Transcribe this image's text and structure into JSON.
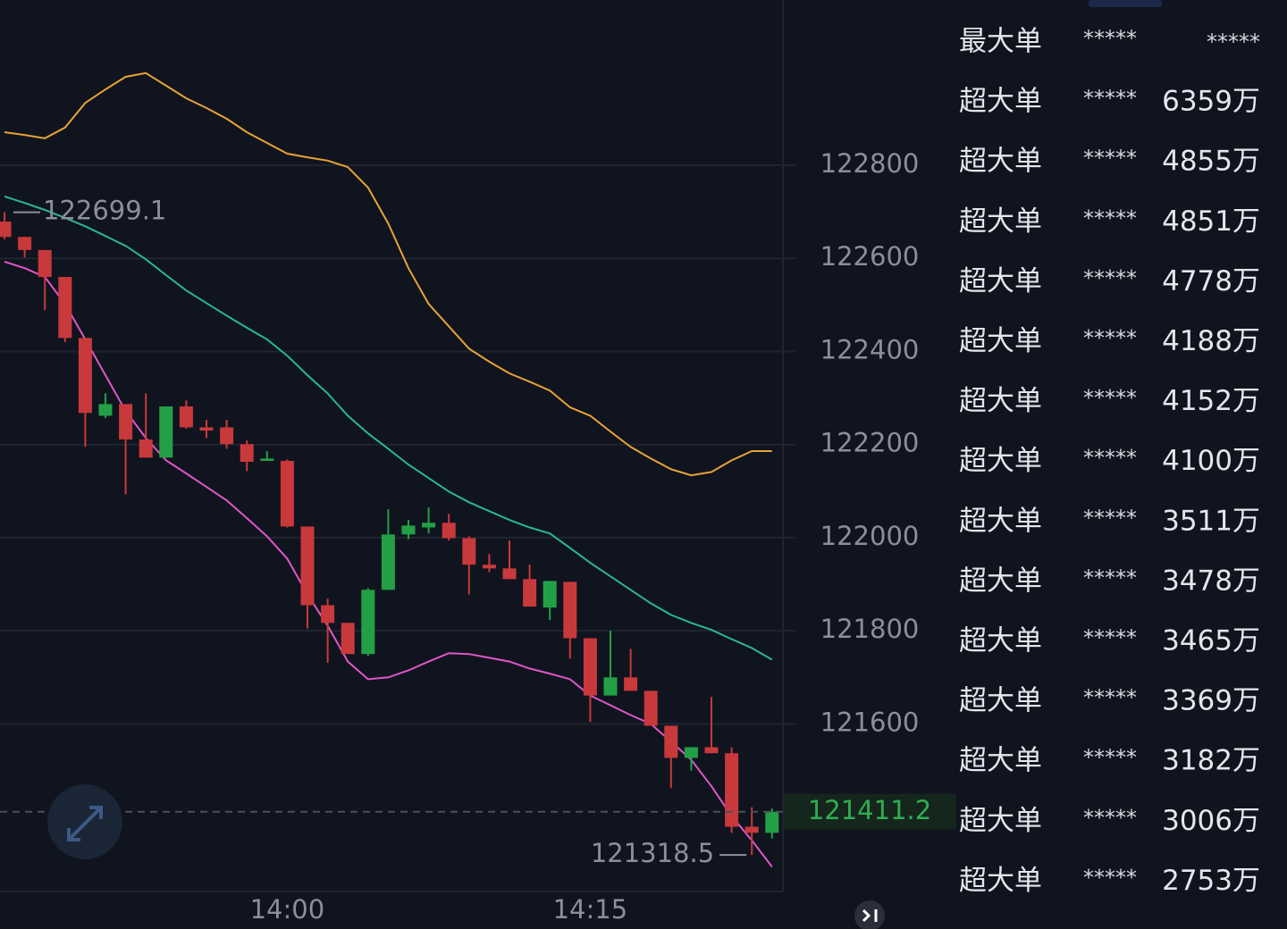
{
  "chart_data": {
    "type": "candlestick",
    "categories": [
      null,
      null,
      null,
      null,
      null,
      null,
      null,
      null,
      null,
      null,
      null,
      null,
      null,
      null,
      "14:00",
      null,
      null,
      null,
      null,
      null,
      null,
      null,
      null,
      null,
      null,
      null,
      null,
      null,
      null,
      "14:15",
      null,
      null,
      null,
      null,
      null,
      null,
      null,
      null,
      null
    ],
    "open": [
      122679,
      122646,
      122618,
      122560,
      122429,
      122262,
      122287,
      122211,
      122172,
      122282,
      122237,
      122237,
      122201,
      122165,
      122165,
      122024,
      121855,
      121817,
      121750,
      121888,
      122007,
      122022,
      122032,
      121999,
      121942,
      121934,
      121911,
      121850,
      121905,
      121784,
      121661,
      121700,
      121671,
      121596,
      121527,
      121550,
      121537,
      121379,
      121366
    ],
    "high": [
      122699.1,
      122646,
      122618,
      122560,
      122429,
      122310,
      122287,
      122310,
      122282,
      122295,
      122253,
      122253,
      122209,
      122186,
      122168,
      122024,
      121869,
      121817,
      121892,
      122061,
      122038,
      122065,
      122051,
      122003,
      121965,
      121994,
      121942,
      121907,
      121905,
      121784,
      121800,
      121761,
      121671,
      121596,
      121550,
      121658,
      121550,
      121421,
      121418
    ],
    "low": [
      122641,
      122602,
      122489,
      122420,
      122195,
      122257,
      122093,
      122172,
      122172,
      122234,
      122214,
      122191,
      122143,
      122165,
      122022,
      121805,
      121731,
      121750,
      121746,
      121888,
      121997,
      122009,
      121994,
      121878,
      121926,
      121911,
      121852,
      121823,
      121740,
      121604,
      121661,
      121671,
      121596,
      121462,
      121500,
      121537,
      121366,
      121318.5,
      121354
    ],
    "close": [
      122646,
      122618,
      122560,
      122429,
      122268,
      122287,
      122211,
      122172,
      122282,
      122237,
      122230,
      122201,
      122163,
      122170,
      122024,
      121855,
      121817,
      121750,
      121888,
      122007,
      122026,
      122032,
      121999,
      121942,
      121934,
      121911,
      121852,
      121907,
      121784,
      121661,
      121700,
      121671,
      121596,
      121527,
      121550,
      121537,
      121379,
      121366,
      121411.2
    ],
    "up_color": "#23a046",
    "down_color": "#c8393b",
    "series": [
      {
        "color": "#e8a336",
        "values": [
          122871,
          122865,
          122858,
          122881,
          122934,
          122963,
          122990,
          122998,
          122971,
          122944,
          122923,
          122900,
          122871,
          122848,
          122825,
          122817,
          122810,
          122796,
          122752,
          122675,
          122579,
          122502,
          122454,
          122406,
          122378,
          122353,
          122335,
          122316,
          122280,
          122262,
          122228,
          122195,
          122170,
          122147,
          122134,
          122141,
          122166,
          122186,
          122186
        ]
      },
      {
        "color": "#2bb59a",
        "values": [
          122733,
          122719,
          122704,
          122687,
          122669,
          122648,
          122627,
          122598,
          122564,
          122531,
          122504,
          122477,
          122451,
          122426,
          122391,
          122349,
          122310,
          122262,
          122224,
          122191,
          122157,
          122128,
          122099,
          122076,
          122057,
          122038,
          122022,
          122009,
          121978,
          121946,
          121917,
          121888,
          121859,
          121834,
          121817,
          121802,
          121782,
          121763,
          121738
        ]
      },
      {
        "color": "#e056c8",
        "values": [
          122593,
          122579,
          122560,
          122502,
          122426,
          122349,
          122272,
          122214,
          122166,
          122138,
          122109,
          122080,
          122042,
          122003,
          121955,
          121878,
          121811,
          121734,
          121696,
          121700,
          121715,
          121734,
          121752,
          121750,
          121742,
          121734,
          121719,
          121708,
          121696,
          121661,
          121640,
          121619,
          121600,
          121562,
          121523,
          121466,
          121402,
          121350,
          121293
        ]
      }
    ],
    "ylim": [
      121240,
      123155
    ],
    "yticks": [
      121600,
      121800,
      122000,
      122200,
      122400,
      122600,
      122800
    ],
    "grid": true
  },
  "order_list": {
    "rows": [
      {
        "type": "最大单",
        "user": "*****",
        "amount": "*****"
      },
      {
        "type": "超大单",
        "user": "*****",
        "amount": "6359万"
      },
      {
        "type": "超大单",
        "user": "*****",
        "amount": "4855万"
      },
      {
        "type": "超大单",
        "user": "*****",
        "amount": "4851万"
      },
      {
        "type": "超大单",
        "user": "*****",
        "amount": "4778万"
      },
      {
        "type": "超大单",
        "user": "*****",
        "amount": "4188万"
      },
      {
        "type": "超大单",
        "user": "*****",
        "amount": "4152万"
      },
      {
        "type": "超大单",
        "user": "*****",
        "amount": "4100万"
      },
      {
        "type": "超大单",
        "user": "*****",
        "amount": "3511万"
      },
      {
        "type": "超大单",
        "user": "*****",
        "amount": "3478万"
      },
      {
        "type": "超大单",
        "user": "*****",
        "amount": "3465万"
      },
      {
        "type": "超大单",
        "user": "*****",
        "amount": "3369万"
      },
      {
        "type": "超大单",
        "user": "*****",
        "amount": "3182万"
      },
      {
        "type": "超大单",
        "user": "*****",
        "amount": "3006万"
      },
      {
        "type": "超大单",
        "user": "*****",
        "amount": "2753万"
      }
    ]
  }
}
